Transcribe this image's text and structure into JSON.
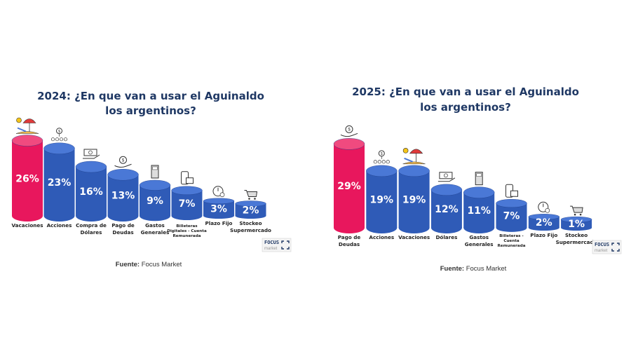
{
  "chart_data": [
    {
      "type": "bar",
      "title": [
        "2024: ¿En que van a usar el Aguinaldo",
        "los argentinos?"
      ],
      "categories": [
        [
          "Vacaciones"
        ],
        [
          "Acciones"
        ],
        [
          "Compra de",
          "Dólares"
        ],
        [
          "Pago de",
          "Deudas"
        ],
        [
          "Gastos",
          "Generales"
        ],
        [
          "Billeteras",
          "Digitales - Cuenta",
          "Remunerada"
        ],
        [
          "Plazo Fijo"
        ],
        [
          "Stockeo",
          "Supermercado"
        ]
      ],
      "values": [
        26,
        23,
        16,
        13,
        9,
        7,
        3,
        2
      ],
      "value_labels": [
        "26%",
        "23%",
        "16%",
        "13%",
        "9%",
        "7%",
        "3%",
        "2%"
      ],
      "icons": [
        "beach-umbrella-icon",
        "money-network-icon",
        "dollar-bills-icon",
        "money-bag-hand-icon",
        "calculator-icon",
        "digital-wallet-icon",
        "stopwatch-dollar-icon",
        "shopping-cart-icon"
      ],
      "highlight_index": 0,
      "source": {
        "label": "Fuente:",
        "text": " Focus Market"
      },
      "logo": {
        "top": "FOCUS",
        "bottom": "market"
      }
    },
    {
      "type": "bar",
      "title": [
        "2025: ¿En que van a usar el Aguinaldo",
        "los argentinos?"
      ],
      "categories": [
        [
          "Pago de",
          "Deudas"
        ],
        [
          "Acciones"
        ],
        [
          "Vacaciones"
        ],
        [
          "Dólares"
        ],
        [
          "Gastos",
          "Generales"
        ],
        [
          "Billeteras -",
          "Cuenta",
          "Remunerada"
        ],
        [
          "Plazo Fijo"
        ],
        [
          "Stockeo",
          "Supermercado"
        ]
      ],
      "values": [
        29,
        19,
        19,
        12,
        11,
        7,
        2,
        1
      ],
      "value_labels": [
        "29%",
        "19%",
        "19%",
        "12%",
        "11%",
        "7%",
        "2%",
        "1%"
      ],
      "icons": [
        "money-bag-hand-icon",
        "money-network-icon",
        "beach-umbrella-icon",
        "dollar-bills-icon",
        "calculator-icon",
        "digital-wallet-icon",
        "stopwatch-dollar-icon",
        "shopping-cart-icon"
      ],
      "highlight_index": 0,
      "source": {
        "label": "Fuente:",
        "text": " Focus Market"
      },
      "logo": {
        "top": "FOCUS",
        "bottom": "market"
      }
    }
  ],
  "colors": {
    "highlight": "#e8175d",
    "bar": "#2f5bb7",
    "bar_top": "#4a78d6",
    "title": "#1f3864"
  }
}
